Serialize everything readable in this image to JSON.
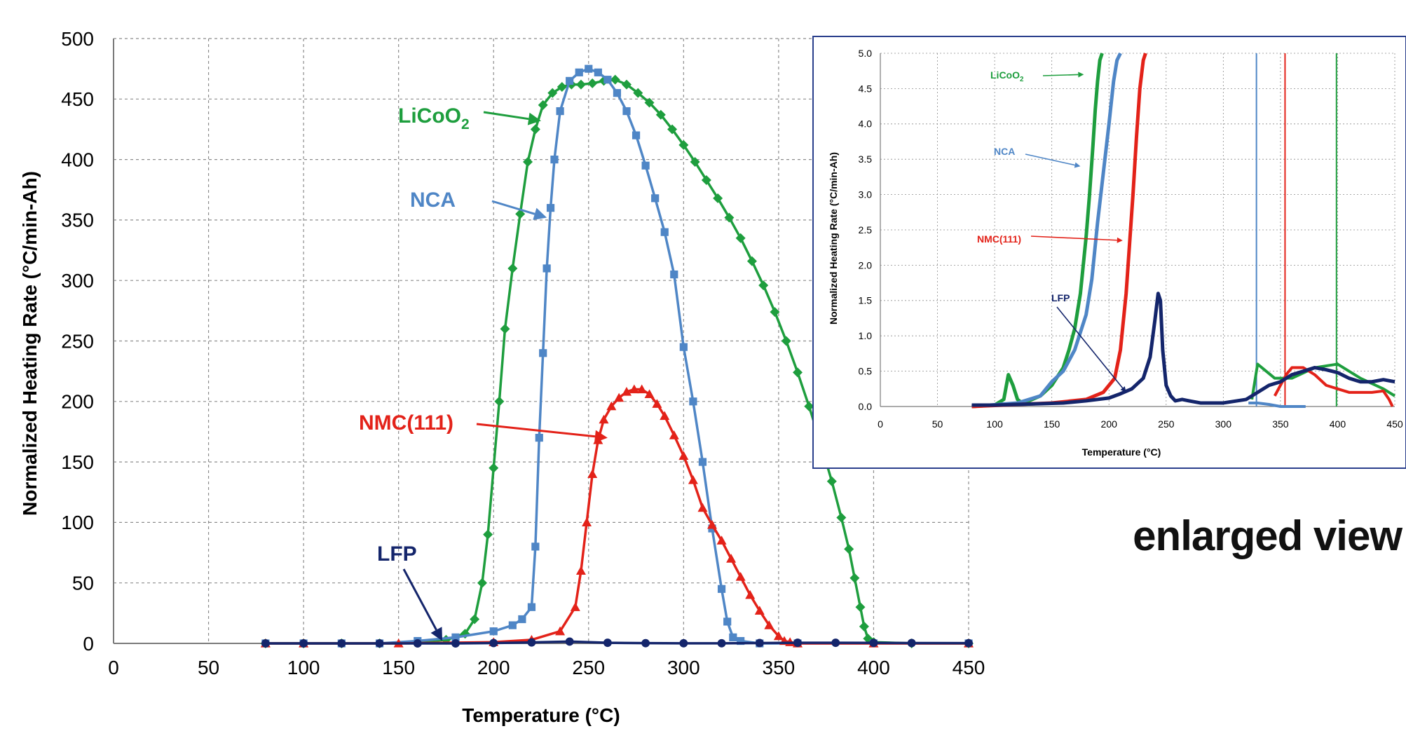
{
  "header": {
    "fragment_text": ""
  },
  "chart_data": [
    {
      "type": "scatter",
      "id": "main",
      "title": "",
      "xlabel": "Temperature (°C)",
      "ylabel": "Normalized Heating Rate (°C/min-Ah)",
      "xlim": [
        0,
        450
      ],
      "ylim": [
        0,
        500
      ],
      "xticks": [
        "0",
        "50",
        "100",
        "150",
        "200",
        "250",
        "300",
        "350",
        "400",
        "450"
      ],
      "yticks": [
        "0",
        "50",
        "100",
        "150",
        "200",
        "250",
        "300",
        "350",
        "400",
        "450",
        "500"
      ],
      "grid": true,
      "series": [
        {
          "name": "LiCoO2",
          "color": "#1e9e3e",
          "marker": "diamond",
          "x": [
            80,
            100,
            120,
            140,
            160,
            175,
            185,
            190,
            194,
            197,
            200,
            203,
            206,
            210,
            214,
            218,
            222,
            226,
            231,
            236,
            241,
            246,
            252,
            258,
            264,
            270,
            276,
            282,
            288,
            294,
            300,
            306,
            312,
            318,
            324,
            330,
            336,
            342,
            348,
            354,
            360,
            366,
            372,
            378,
            383,
            387,
            390,
            393,
            395,
            397,
            400,
            420,
            450
          ],
          "y": [
            0,
            0,
            0,
            0,
            1,
            3,
            8,
            20,
            50,
            90,
            145,
            200,
            260,
            310,
            355,
            398,
            425,
            445,
            455,
            460,
            462,
            462,
            463,
            465,
            466,
            462,
            455,
            447,
            437,
            425,
            412,
            398,
            383,
            368,
            352,
            335,
            316,
            296,
            274,
            250,
            224,
            196,
            166,
            134,
            104,
            78,
            54,
            30,
            14,
            4,
            1,
            0,
            0
          ]
        },
        {
          "name": "NCA",
          "color": "#4f86c6",
          "marker": "square",
          "x": [
            80,
            100,
            120,
            140,
            160,
            180,
            200,
            210,
            215,
            220,
            222,
            224,
            226,
            228,
            230,
            232,
            235,
            240,
            245,
            250,
            255,
            260,
            265,
            270,
            275,
            280,
            285,
            290,
            295,
            300,
            305,
            310,
            315,
            320,
            323,
            326,
            330,
            340,
            360,
            400,
            450
          ],
          "y": [
            0,
            0,
            0,
            0,
            2,
            5,
            10,
            15,
            20,
            30,
            80,
            170,
            240,
            310,
            360,
            400,
            440,
            465,
            472,
            475,
            472,
            466,
            455,
            440,
            420,
            395,
            368,
            340,
            305,
            245,
            200,
            150,
            95,
            45,
            18,
            5,
            2,
            0,
            0,
            0,
            0
          ]
        },
        {
          "name": "NMC(111)",
          "color": "#e32219",
          "marker": "triangle",
          "x": [
            80,
            100,
            150,
            200,
            220,
            235,
            243,
            246,
            249,
            252,
            255,
            258,
            262,
            266,
            270,
            274,
            278,
            282,
            286,
            290,
            295,
            300,
            305,
            310,
            315,
            320,
            325,
            330,
            335,
            340,
            345,
            350,
            353,
            356,
            360,
            400,
            450
          ],
          "y": [
            0,
            0,
            0,
            1,
            3,
            10,
            30,
            60,
            100,
            140,
            168,
            185,
            196,
            203,
            208,
            210,
            210,
            206,
            198,
            188,
            172,
            155,
            135,
            112,
            98,
            85,
            70,
            55,
            40,
            27,
            15,
            6,
            2,
            1,
            0,
            0,
            0
          ]
        },
        {
          "name": "LFP",
          "color": "#14256b",
          "marker": "circle",
          "x": [
            80,
            100,
            120,
            140,
            160,
            180,
            200,
            220,
            240,
            260,
            280,
            300,
            320,
            340,
            360,
            380,
            400,
            420,
            450
          ],
          "y": [
            0,
            0,
            0,
            0,
            0,
            0,
            0.3,
            0.8,
            1.5,
            0.5,
            0.2,
            0.1,
            0.1,
            0.3,
            0.5,
            0.5,
            0.4,
            0.3,
            0.2
          ]
        }
      ],
      "annotations": [
        {
          "label": "LiCoO",
          "subscript": "2",
          "series": "LiCoO2",
          "point_to": [
            225,
            432
          ]
        },
        {
          "label": "NCA",
          "series": "NCA",
          "point_to": [
            228,
            352
          ]
        },
        {
          "label": "NMC(111)",
          "series": "NMC(111)",
          "point_to": [
            260,
            170
          ]
        },
        {
          "label": "LFP",
          "series": "LFP",
          "point_to": [
            173,
            2
          ]
        }
      ]
    },
    {
      "type": "scatter",
      "id": "inset",
      "title": "",
      "xlabel": "Temperature (°C)",
      "ylabel": "Normalized Heating Rate (°C/min-Ah)",
      "xlim": [
        0,
        450
      ],
      "ylim": [
        0,
        5
      ],
      "xticks": [
        "0",
        "50",
        "100",
        "150",
        "200",
        "250",
        "300",
        "350",
        "400",
        "450"
      ],
      "yticks": [
        "0.0",
        "0.5",
        "1.0",
        "1.5",
        "2.0",
        "2.5",
        "3.0",
        "3.5",
        "4.0",
        "4.5",
        "5.0"
      ],
      "grid": true,
      "series": [
        {
          "name": "LiCoO2",
          "color": "#1e9e3e",
          "x": [
            80,
            100,
            108,
            112,
            116,
            120,
            124,
            130,
            140,
            150,
            160,
            165,
            170,
            175,
            180,
            183,
            186,
            188,
            190,
            192,
            194
          ],
          "y": [
            0,
            0.02,
            0.1,
            0.45,
            0.3,
            0.1,
            0.05,
            0.08,
            0.15,
            0.3,
            0.55,
            0.8,
            1.1,
            1.6,
            2.4,
            3.0,
            3.7,
            4.2,
            4.6,
            4.9,
            5.0
          ]
        },
        {
          "name": "NCA",
          "color": "#4f86c6",
          "x": [
            80,
            120,
            140,
            150,
            160,
            170,
            180,
            185,
            190,
            195,
            200,
            204,
            207,
            210
          ],
          "y": [
            0,
            0.05,
            0.15,
            0.35,
            0.5,
            0.8,
            1.3,
            1.8,
            2.6,
            3.3,
            4.0,
            4.6,
            4.9,
            5.0
          ]
        },
        {
          "name": "NMC(111)",
          "color": "#e32219",
          "x": [
            80,
            150,
            180,
            195,
            205,
            210,
            215,
            218,
            221,
            224,
            227,
            230,
            232
          ],
          "y": [
            0,
            0.05,
            0.1,
            0.2,
            0.4,
            0.8,
            1.6,
            2.3,
            3.0,
            3.8,
            4.5,
            4.9,
            5.0
          ]
        },
        {
          "name": "LFP",
          "color": "#14256b",
          "x": [
            80,
            100,
            120,
            140,
            160,
            180,
            200,
            210,
            220,
            230,
            236,
            240,
            243,
            245,
            247,
            250,
            254,
            258,
            264,
            270,
            280,
            300,
            320,
            340,
            350,
            360,
            370,
            380,
            390,
            400,
            410,
            420,
            430,
            440,
            450
          ],
          "y": [
            0.02,
            0.02,
            0.03,
            0.04,
            0.05,
            0.08,
            0.12,
            0.18,
            0.25,
            0.4,
            0.7,
            1.2,
            1.6,
            1.5,
            0.8,
            0.3,
            0.15,
            0.08,
            0.1,
            0.08,
            0.05,
            0.05,
            0.1,
            0.3,
            0.35,
            0.45,
            0.5,
            0.55,
            0.52,
            0.48,
            0.4,
            0.35,
            0.35,
            0.38,
            0.35
          ]
        }
      ],
      "tails": [
        {
          "series": "LiCoO2",
          "x": [
            325,
            330,
            345,
            360,
            380,
            400,
            420,
            440,
            450
          ],
          "y": [
            0.1,
            0.6,
            0.4,
            0.4,
            0.55,
            0.6,
            0.4,
            0.25,
            0.15
          ]
        },
        {
          "series": "NMC(111)",
          "x": [
            345,
            350,
            355,
            360,
            370,
            380,
            390,
            400,
            410,
            420,
            430,
            440,
            445,
            448
          ],
          "y": [
            0.15,
            0.3,
            0.45,
            0.55,
            0.55,
            0.45,
            0.3,
            0.25,
            0.2,
            0.2,
            0.2,
            0.22,
            0.1,
            0.0
          ]
        },
        {
          "series": "NCA",
          "x": [
            322,
            330,
            340,
            350,
            360,
            372
          ],
          "y": [
            0.05,
            0.05,
            0.03,
            0.0,
            0.0,
            0.0
          ]
        }
      ],
      "verticals": [
        {
          "series": "NCA",
          "x": 329
        },
        {
          "series": "NMC(111)",
          "x": 354
        },
        {
          "series": "LiCoO2",
          "x": 399
        }
      ],
      "annotations": [
        {
          "label": "LiCoO",
          "subscript": "2",
          "series": "LiCoO2",
          "point_to": [
            178,
            4.7
          ]
        },
        {
          "label": "NCA",
          "series": "NCA",
          "point_to": [
            175,
            3.4
          ]
        },
        {
          "label": "NMC(111)",
          "series": "NMC(111)",
          "point_to": [
            212,
            2.35
          ]
        },
        {
          "label": "LFP",
          "series": "LFP",
          "point_to": [
            215,
            0.2
          ]
        }
      ]
    }
  ],
  "caption": {
    "text": "enlarged view"
  }
}
